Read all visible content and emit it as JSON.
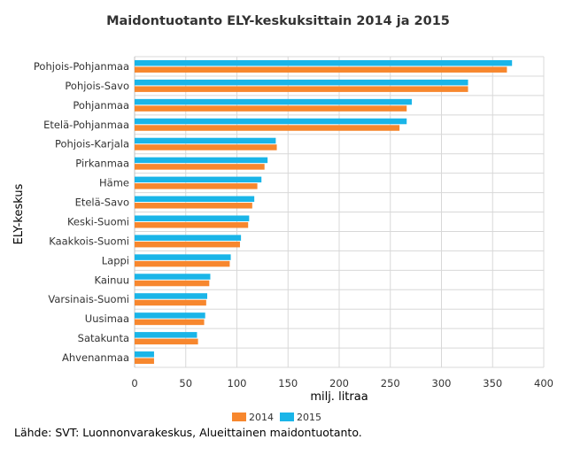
{
  "chart_data": {
    "type": "bar",
    "orientation": "horizontal",
    "title": "Maidontuotanto ELY-keskuksittain 2014 ja 2015",
    "xlabel": "milj. litraa",
    "ylabel": "ELY-keskus",
    "xlim": [
      0,
      400
    ],
    "x_ticks": [
      0,
      50,
      100,
      150,
      200,
      250,
      300,
      350,
      400
    ],
    "grid": true,
    "legend_position": "bottom",
    "categories": [
      "Pohjois-Pohjanmaa",
      "Pohjois-Savo",
      "Pohjanmaa",
      "Etelä-Pohjanmaa",
      "Pohjois-Karjala",
      "Pirkanmaa",
      "Häme",
      "Etelä-Savo",
      "Keski-Suomi",
      "Kaakkois-Suomi",
      "Lappi",
      "Kainuu",
      "Varsinais-Suomi",
      "Uusimaa",
      "Satakunta",
      "Ahvenanmaa"
    ],
    "series": [
      {
        "name": "2015",
        "color": "#1ab5e8",
        "values": [
          369,
          326,
          271,
          266,
          138,
          130,
          124,
          117,
          112,
          104,
          94,
          74,
          71,
          69,
          61,
          19
        ]
      },
      {
        "name": "2014",
        "color": "#f7872e",
        "values": [
          364,
          326,
          266,
          259,
          139,
          127,
          120,
          115,
          111,
          103,
          93,
          73,
          70,
          68,
          62,
          19
        ]
      }
    ],
    "legend_order": [
      "2014",
      "2015"
    ]
  },
  "source": "Lähde: SVT: Luonnonvarakeskus, Alueittainen maidontuotanto."
}
